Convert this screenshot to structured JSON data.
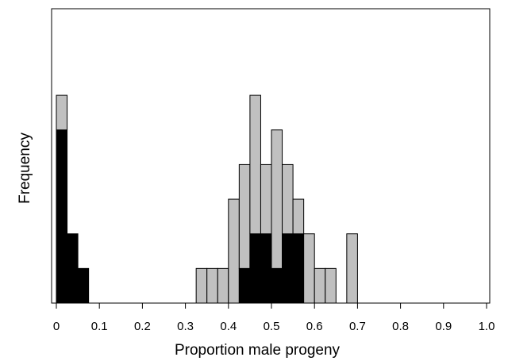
{
  "chart_data": {
    "type": "bar",
    "subtype": "stacked-histogram",
    "xlabel": "Proportion male progeny",
    "ylabel": "Frequency",
    "xlim": [
      0,
      1.0
    ],
    "ylim": [
      0,
      8.5
    ],
    "y_ticks_shown": false,
    "grid": false,
    "legend": "none",
    "bin_width": 0.025,
    "x_ticks": [
      "0",
      "0.1",
      "0.2",
      "0.3",
      "0.4",
      "0.5",
      "0.6",
      "0.7",
      "0.8",
      "0.9",
      "1.0"
    ],
    "x_tick_values": [
      0,
      0.1,
      0.2,
      0.3,
      0.4,
      0.5,
      0.6,
      0.7,
      0.8,
      0.9,
      1.0
    ],
    "bins": [
      0.0,
      0.025,
      0.05,
      0.325,
      0.35,
      0.375,
      0.4,
      0.425,
      0.45,
      0.475,
      0.5,
      0.525,
      0.55,
      0.575,
      0.6,
      0.625,
      0.675
    ],
    "series": [
      {
        "color": "#000000",
        "values": [
          5,
          2,
          1,
          0,
          0,
          0,
          0,
          1,
          2,
          2,
          1,
          2,
          2,
          0,
          0,
          0,
          0
        ]
      },
      {
        "color": "#c0c0c0",
        "values": [
          1,
          0,
          0,
          1,
          1,
          1,
          3,
          3,
          4,
          2,
          4,
          2,
          1,
          2,
          1,
          1,
          2
        ]
      }
    ]
  }
}
